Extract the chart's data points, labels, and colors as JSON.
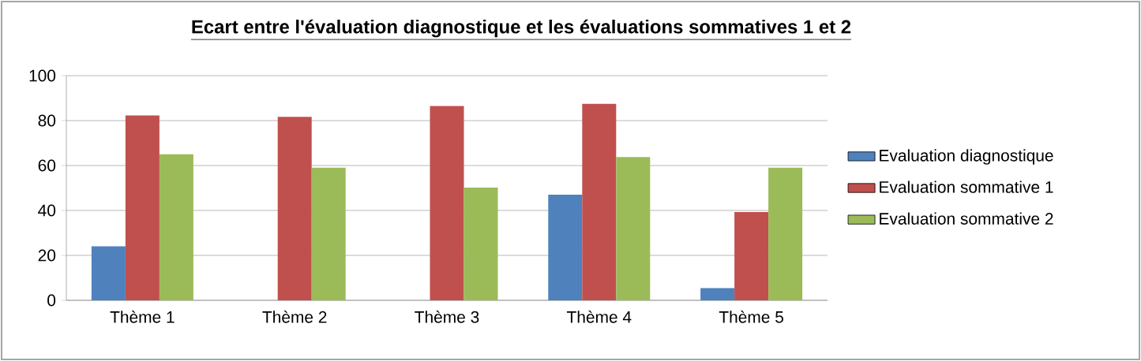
{
  "chart_data": {
    "type": "bar",
    "title": "Ecart entre l'évaluation diagnostique et les évaluations sommatives 1 et 2",
    "categories": [
      "Thème 1",
      "Thème 2",
      "Thème 3",
      "Thème 4",
      "Thème 5"
    ],
    "series": [
      {
        "name": "Evaluation diagnostique",
        "color": "#4f81bd",
        "values": [
          24,
          0,
          0,
          47,
          5.4
        ]
      },
      {
        "name": "Evaluation sommative 1",
        "color": "#c0504d",
        "values": [
          82.3,
          81.7,
          86.5,
          87.5,
          39.3
        ]
      },
      {
        "name": "Evaluation sommative 2",
        "color": "#9bbb59",
        "values": [
          65,
          59,
          50.2,
          63.8,
          59
        ]
      }
    ],
    "ylim": [
      0,
      100
    ],
    "yticks": [
      0,
      20,
      40,
      60,
      80,
      100
    ],
    "grid": "y",
    "legend": "right"
  }
}
